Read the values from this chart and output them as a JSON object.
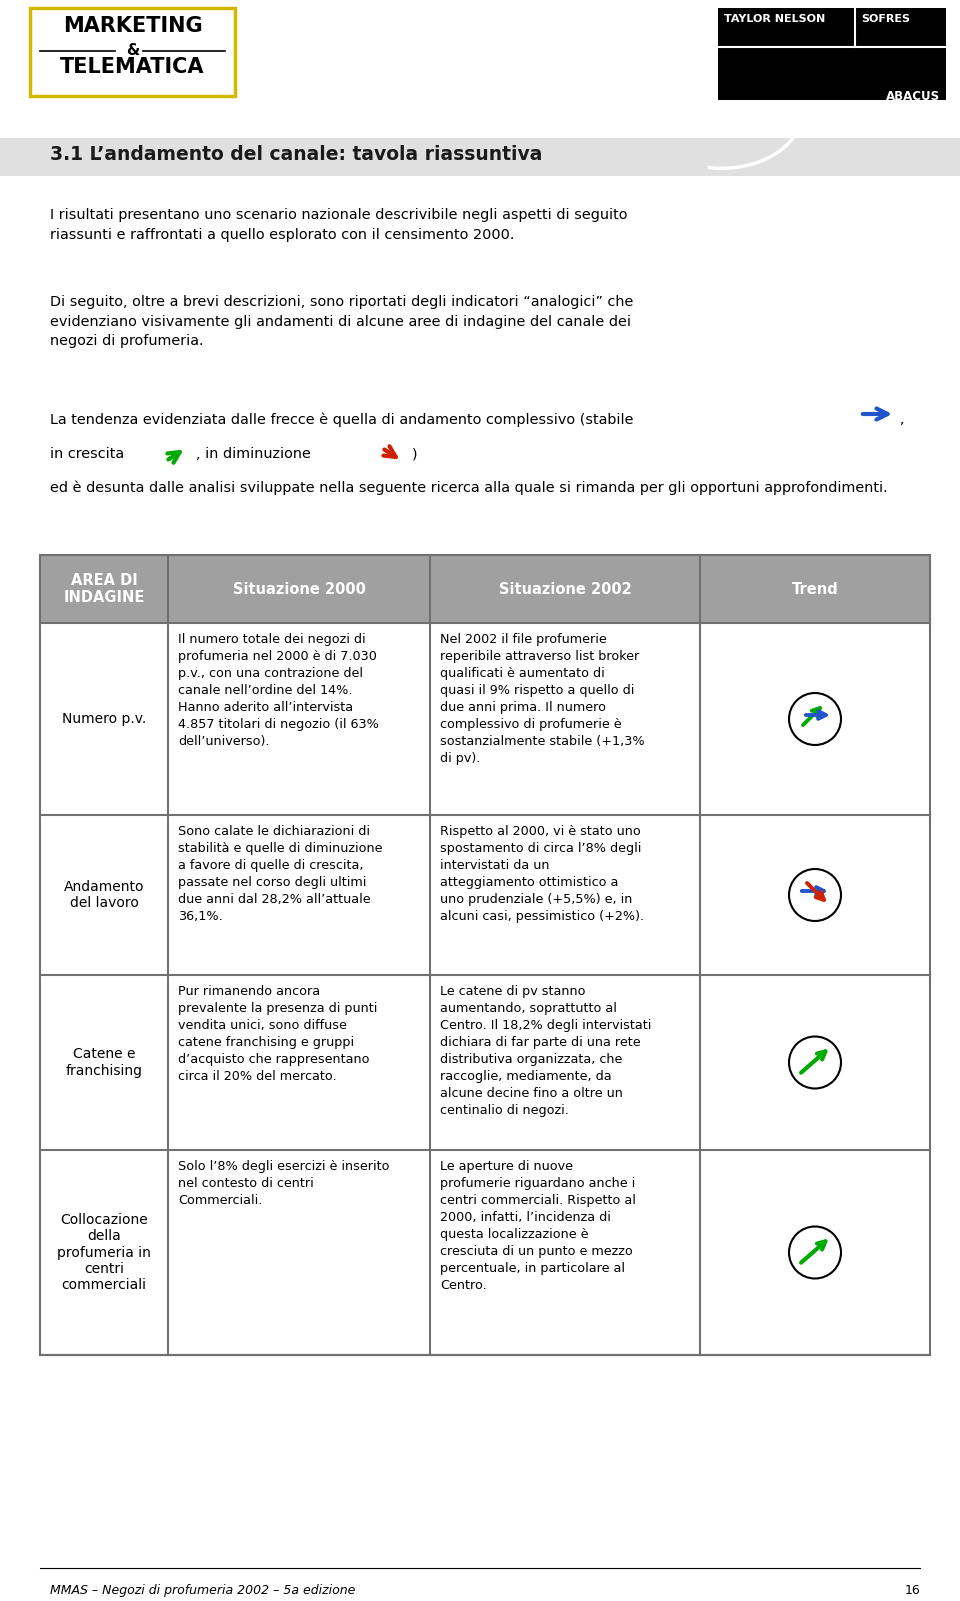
{
  "title": "3.1 L’andamento del canale: tavola riassuntiva",
  "intro_text": "I risultati presentano uno scenario nazionale descrivibile negli aspetti di seguito\nriassunti e raffrontati a quello esplorato con il censimento 2000.",
  "para1": "Di seguito, oltre a brevi descrizioni, sono riportati degli indicatori “analogici” che\nevidenziano visivamente gli andamenti di alcune aree di indagine del canale dei\nnegozi di profumeria.",
  "para2_line1_prefix": "La tendenza evidenziata dalle frecce è quella di andamento complessivo (stabile",
  "para2_line2_a": "in crescita",
  "para2_line2_b": ", in diminuzione",
  "para2_line3": ") ed è desunta dalle analisi sviluppate nella seguente ricerca alla quale si rimanda per gli opportuni approfondimenti.",
  "header_col0": "AREA DI\nINDAGINE",
  "header_col1": "Situazione 2000",
  "header_col2": "Situazione 2002",
  "header_col3": "Trend",
  "row1_col0": "Numero p.v.",
  "row1_col1": "Il numero totale dei negozi di\nprofumeria nel 2000 è di 7.030\np.v., con una contrazione del\ncanale nell’ordine del 14%.\nHanno aderito all’intervista\n4.857 titolari di negozio (il 63%\ndell’universo).",
  "row1_col2": "Nel 2002 il file profumerie\nreperibile attraverso list broker\nqualificati è aumentato di\nquasi il 9% rispetto a quello di\ndue anni prima. Il numero\ncomplessivo di profumerie è\nsostanzialmente stabile (+1,3%\ndi pv).",
  "row2_col0": "Andamento\ndel lavoro",
  "row2_col1": "Sono calate le dichiarazioni di\nstabilità e quelle di diminuzione\na favore di quelle di crescita,\npassate nel corso degli ultimi\ndue anni dal 28,2% all’attuale\n36,1%.",
  "row2_col2": "Rispetto al 2000, vi è stato uno\nspostamento di circa l’8% degli\nintervistati da un\natteggiamento ottimistico a\nuno prudenziale (+5,5%) e, in\nalcuni casi, pessimistico (+2%).",
  "row3_col0": "Catene e\nfranchising",
  "row3_col1": "Pur rimanendo ancora\nprevalente la presenza di punti\nvendita unici, sono diffuse\ncatene franchising e gruppi\nd’acquisto che rappresentano\ncirca il 20% del mercato.",
  "row3_col2": "Le catene di pv stanno\naumentando, soprattutto al\nCentro. Il 18,2% degli intervistati\ndichiara di far parte di una rete\ndistributiva organizzata, che\nraccoglie, mediamente, da\nalcune decine fino a oltre un\ncentinalio di negozi.",
  "row4_col0": "Collocazione\ndella\nprofumeria in\ncentri\ncommerciali",
  "row4_col1": "Solo l’8% degli esercizi è inserito\nnel contesto di centri\nCommerciali.",
  "row4_col2": "Le aperture di nuove\nprofumerie riguardano anche i\ncentri commerciali. Rispetto al\n2000, infatti, l’incidenza di\nquesta localizzazione è\ncresciuta di un punto e mezzo\npercentuale, in particolare al\nCentro.",
  "footer_text": "MMAS – Negozi di profumeria 2002 – 5a edizione",
  "footer_page": "16",
  "bg_color": "#ffffff",
  "header_bg": "#a0a0a0",
  "title_bg": "#e0e0e0",
  "table_border": "#707070",
  "body_font_size": 9.2,
  "title_font_size": 13.5,
  "section_title_color": "#1a1a1a",
  "logo_yellow": "#d4b800",
  "arrow_blue": "#2255cc",
  "arrow_green": "#00aa00",
  "arrow_red": "#cc2200"
}
